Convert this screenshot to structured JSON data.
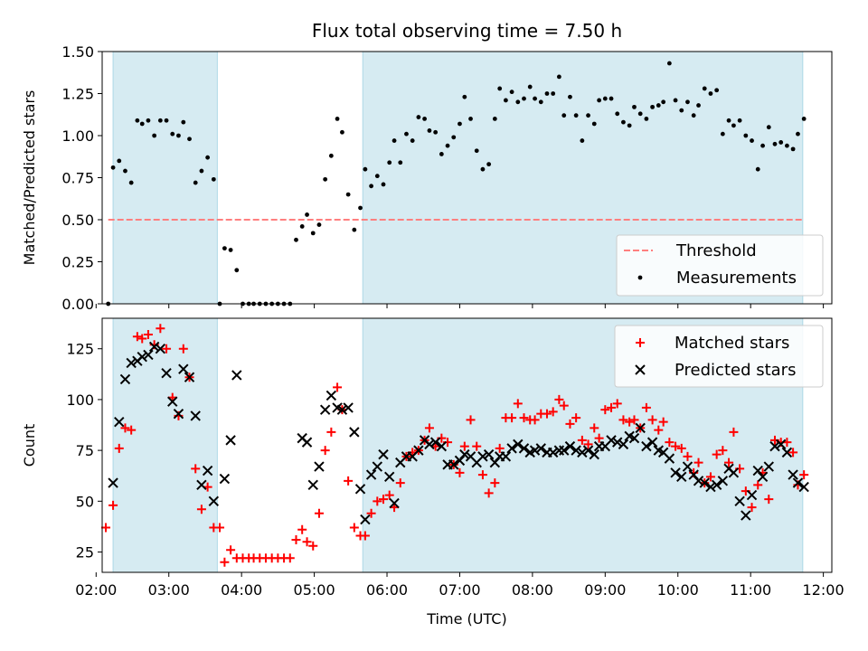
{
  "chart_data": [
    {
      "type": "scatter",
      "title": "Flux total observing time = 7.50 h",
      "xlabel": "",
      "ylabel": "Matched/Predicted stars",
      "xlim": [
        "02:05",
        "12:07"
      ],
      "ylim": [
        0,
        1.5
      ],
      "yticks": [
        0.0,
        0.25,
        0.5,
        0.75,
        1.0,
        1.25,
        1.5
      ],
      "ytick_labels": [
        "0.00",
        "0.25",
        "0.50",
        "0.75",
        "1.00",
        "1.25",
        "1.50"
      ],
      "shaded_intervals": [
        [
          "02:14",
          "03:40"
        ],
        [
          "05:40",
          "11:43"
        ]
      ],
      "threshold": {
        "value": 0.5,
        "from": "02:10",
        "to": "11:43",
        "label": "Threshold",
        "color": "#ff7f7f"
      },
      "legend_placement": "lower right",
      "series": [
        {
          "name": "Measurements",
          "color": "#000000",
          "x": [
            "02:10",
            "02:14",
            "02:19",
            "02:24",
            "02:29",
            "02:34",
            "02:38",
            "02:43",
            "02:48",
            "02:53",
            "02:58",
            "03:03",
            "03:08",
            "03:12",
            "03:17",
            "03:22",
            "03:27",
            "03:32",
            "03:37",
            "03:42",
            "03:46",
            "03:51",
            "03:56",
            "04:01",
            "04:06",
            "04:10",
            "04:15",
            "04:20",
            "04:25",
            "04:30",
            "04:35",
            "04:40",
            "04:45",
            "04:50",
            "04:54",
            "04:59",
            "05:04",
            "05:09",
            "05:14",
            "05:19",
            "05:23",
            "05:28",
            "05:33",
            "05:38",
            "05:42",
            "05:47",
            "05:52",
            "05:57",
            "06:02",
            "06:06",
            "06:11",
            "06:16",
            "06:21",
            "06:26",
            "06:31",
            "06:35",
            "06:40",
            "06:45",
            "06:50",
            "06:55",
            "07:00",
            "07:04",
            "07:09",
            "07:14",
            "07:19",
            "07:24",
            "07:29",
            "07:33",
            "07:38",
            "07:43",
            "07:48",
            "07:53",
            "07:58",
            "08:02",
            "08:07",
            "08:12",
            "08:17",
            "08:22",
            "08:26",
            "08:31",
            "08:36",
            "08:41",
            "08:46",
            "08:51",
            "08:55",
            "09:00",
            "09:05",
            "09:10",
            "09:15",
            "09:20",
            "09:24",
            "09:29",
            "09:34",
            "09:39",
            "09:44",
            "09:48",
            "09:53",
            "09:58",
            "10:03",
            "10:08",
            "10:13",
            "10:17",
            "10:22",
            "10:27",
            "10:32",
            "10:37",
            "10:42",
            "10:46",
            "10:51",
            "10:56",
            "11:01",
            "11:06",
            "11:10",
            "11:15",
            "11:20",
            "11:25",
            "11:30",
            "11:35",
            "11:39",
            "11:44"
          ],
          "y": [
            0.0,
            0.81,
            0.85,
            0.79,
            0.72,
            1.09,
            1.07,
            1.09,
            1.0,
            1.09,
            1.09,
            1.01,
            1.0,
            1.08,
            0.98,
            0.72,
            0.79,
            0.87,
            0.74,
            0.0,
            0.33,
            0.32,
            0.2,
            0.0,
            0.0,
            0.0,
            0.0,
            0.0,
            0.0,
            0.0,
            0.0,
            0.0,
            0.38,
            0.46,
            0.53,
            0.42,
            0.47,
            0.74,
            0.88,
            1.1,
            1.02,
            0.65,
            0.44,
            0.57,
            0.8,
            0.7,
            0.76,
            0.71,
            0.84,
            0.97,
            0.84,
            1.01,
            0.97,
            1.11,
            1.1,
            1.03,
            1.02,
            0.89,
            0.94,
            0.99,
            1.07,
            1.23,
            1.1,
            0.91,
            0.8,
            0.83,
            1.1,
            1.28,
            1.21,
            1.26,
            1.2,
            1.22,
            1.29,
            1.22,
            1.2,
            1.25,
            1.25,
            1.35,
            1.12,
            1.23,
            1.12,
            0.97,
            1.12,
            1.07,
            1.21,
            1.22,
            1.22,
            1.13,
            1.08,
            1.06,
            1.17,
            1.13,
            1.1,
            1.17,
            1.18,
            1.2,
            1.43,
            1.21,
            1.15,
            1.2,
            1.12,
            1.18,
            1.28,
            1.25,
            1.27,
            1.01,
            1.09,
            1.06,
            1.09,
            1.0,
            0.97,
            0.8,
            0.94,
            1.05,
            0.95,
            0.96,
            0.94,
            0.92,
            1.01,
            1.1
          ]
        }
      ]
    },
    {
      "type": "scatter",
      "title": "",
      "xlabel": "Time (UTC)",
      "ylabel": "Count",
      "xlim": [
        "02:05",
        "12:07"
      ],
      "ylim": [
        15,
        140
      ],
      "yticks": [
        25,
        50,
        75,
        100,
        125
      ],
      "ytick_labels": [
        "25",
        "50",
        "75",
        "100",
        "125"
      ],
      "xticks": [
        "02:00",
        "03:00",
        "04:00",
        "05:00",
        "06:00",
        "07:00",
        "08:00",
        "09:00",
        "10:00",
        "11:00",
        "12:00"
      ],
      "shaded_intervals": [
        [
          "02:14",
          "03:40"
        ],
        [
          "05:40",
          "11:43"
        ]
      ],
      "legend_placement": "upper right",
      "series": [
        {
          "name": "Matched stars",
          "marker": "plus",
          "color": "#ff0000",
          "x": [
            "02:08",
            "02:14",
            "02:19",
            "02:24",
            "02:29",
            "02:34",
            "02:38",
            "02:43",
            "02:48",
            "02:53",
            "02:58",
            "03:03",
            "03:08",
            "03:12",
            "03:17",
            "03:22",
            "03:27",
            "03:32",
            "03:37",
            "03:42",
            "03:46",
            "03:51",
            "03:56",
            "04:01",
            "04:06",
            "04:10",
            "04:15",
            "04:20",
            "04:25",
            "04:30",
            "04:35",
            "04:40",
            "04:45",
            "04:50",
            "04:54",
            "04:59",
            "05:04",
            "05:09",
            "05:14",
            "05:19",
            "05:23",
            "05:28",
            "05:33",
            "05:38",
            "05:42",
            "05:47",
            "05:52",
            "05:57",
            "06:02",
            "06:06",
            "06:11",
            "06:16",
            "06:21",
            "06:26",
            "06:31",
            "06:35",
            "06:40",
            "06:45",
            "06:50",
            "06:55",
            "07:00",
            "07:04",
            "07:09",
            "07:14",
            "07:19",
            "07:24",
            "07:29",
            "07:33",
            "07:38",
            "07:43",
            "07:48",
            "07:53",
            "07:58",
            "08:02",
            "08:07",
            "08:12",
            "08:17",
            "08:22",
            "08:26",
            "08:31",
            "08:36",
            "08:41",
            "08:46",
            "08:51",
            "08:55",
            "09:00",
            "09:05",
            "09:10",
            "09:15",
            "09:20",
            "09:24",
            "09:29",
            "09:34",
            "09:39",
            "09:44",
            "09:48",
            "09:53",
            "09:58",
            "10:03",
            "10:08",
            "10:13",
            "10:17",
            "10:22",
            "10:27",
            "10:32",
            "10:37",
            "10:42",
            "10:46",
            "10:51",
            "10:56",
            "11:01",
            "11:06",
            "11:10",
            "11:15",
            "11:20",
            "11:25",
            "11:30",
            "11:35",
            "11:39",
            "11:44"
          ],
          "y": [
            37,
            48,
            76,
            86,
            85,
            131,
            130,
            132,
            127,
            135,
            125,
            101,
            92,
            125,
            111,
            66,
            46,
            57,
            37,
            37,
            20,
            26,
            22,
            22,
            22,
            22,
            22,
            22,
            22,
            22,
            22,
            22,
            31,
            36,
            30,
            28,
            44,
            75,
            84,
            106,
            95,
            60,
            37,
            33,
            33,
            44,
            50,
            51,
            53,
            47,
            59,
            72,
            74,
            75,
            80,
            86,
            77,
            81,
            79,
            68,
            64,
            77,
            90,
            77,
            63,
            54,
            59,
            76,
            91,
            91,
            98,
            91,
            90,
            90,
            93,
            93,
            94,
            100,
            97,
            88,
            91,
            80,
            78,
            86,
            81,
            95,
            96,
            98,
            90,
            89,
            90,
            86,
            96,
            90,
            85,
            89,
            79,
            77,
            76,
            72,
            64,
            69,
            59,
            62,
            73,
            75,
            69,
            84,
            66,
            55,
            47,
            58,
            64,
            51,
            80,
            79,
            79,
            74,
            58,
            63
          ]
        },
        {
          "name": "Predicted stars",
          "marker": "x",
          "color": "#000000",
          "x": [
            "02:14",
            "02:19",
            "02:24",
            "02:29",
            "02:34",
            "02:38",
            "02:43",
            "02:48",
            "02:53",
            "02:58",
            "03:03",
            "03:08",
            "03:12",
            "03:17",
            "03:22",
            "03:27",
            "03:32",
            "03:37",
            "03:46",
            "03:51",
            "03:56",
            "04:50",
            "04:54",
            "04:59",
            "05:04",
            "05:09",
            "05:14",
            "05:19",
            "05:23",
            "05:28",
            "05:33",
            "05:38",
            "05:42",
            "05:47",
            "05:52",
            "05:57",
            "06:02",
            "06:06",
            "06:11",
            "06:16",
            "06:21",
            "06:26",
            "06:31",
            "06:35",
            "06:40",
            "06:45",
            "06:50",
            "06:55",
            "07:00",
            "07:04",
            "07:09",
            "07:14",
            "07:19",
            "07:24",
            "07:29",
            "07:33",
            "07:38",
            "07:43",
            "07:48",
            "07:53",
            "07:58",
            "08:02",
            "08:07",
            "08:12",
            "08:17",
            "08:22",
            "08:26",
            "08:31",
            "08:36",
            "08:41",
            "08:46",
            "08:51",
            "08:55",
            "09:00",
            "09:05",
            "09:10",
            "09:15",
            "09:20",
            "09:24",
            "09:29",
            "09:34",
            "09:39",
            "09:44",
            "09:48",
            "09:53",
            "09:58",
            "10:03",
            "10:08",
            "10:13",
            "10:17",
            "10:22",
            "10:27",
            "10:32",
            "10:37",
            "10:42",
            "10:46",
            "10:51",
            "10:56",
            "11:01",
            "11:06",
            "11:10",
            "11:15",
            "11:20",
            "11:25",
            "11:30",
            "11:35",
            "11:39",
            "11:44"
          ],
          "y": [
            59,
            89,
            110,
            118,
            119,
            121,
            122,
            126,
            125,
            113,
            99,
            93,
            115,
            111,
            92,
            58,
            65,
            50,
            61,
            80,
            112,
            81,
            79,
            58,
            67,
            95,
            102,
            96,
            95,
            96,
            84,
            56,
            41,
            63,
            67,
            73,
            62,
            49,
            69,
            72,
            72,
            75,
            80,
            78,
            79,
            77,
            68,
            68,
            70,
            73,
            72,
            69,
            72,
            73,
            69,
            72,
            72,
            76,
            78,
            76,
            74,
            75,
            76,
            74,
            74,
            75,
            75,
            77,
            75,
            74,
            75,
            73,
            77,
            77,
            80,
            79,
            78,
            82,
            81,
            86,
            77,
            79,
            75,
            74,
            71,
            64,
            62,
            67,
            63,
            60,
            59,
            57,
            58,
            60,
            66,
            64,
            50,
            43,
            53,
            65,
            62,
            67,
            77,
            78,
            74,
            63,
            59,
            57
          ]
        }
      ]
    }
  ]
}
